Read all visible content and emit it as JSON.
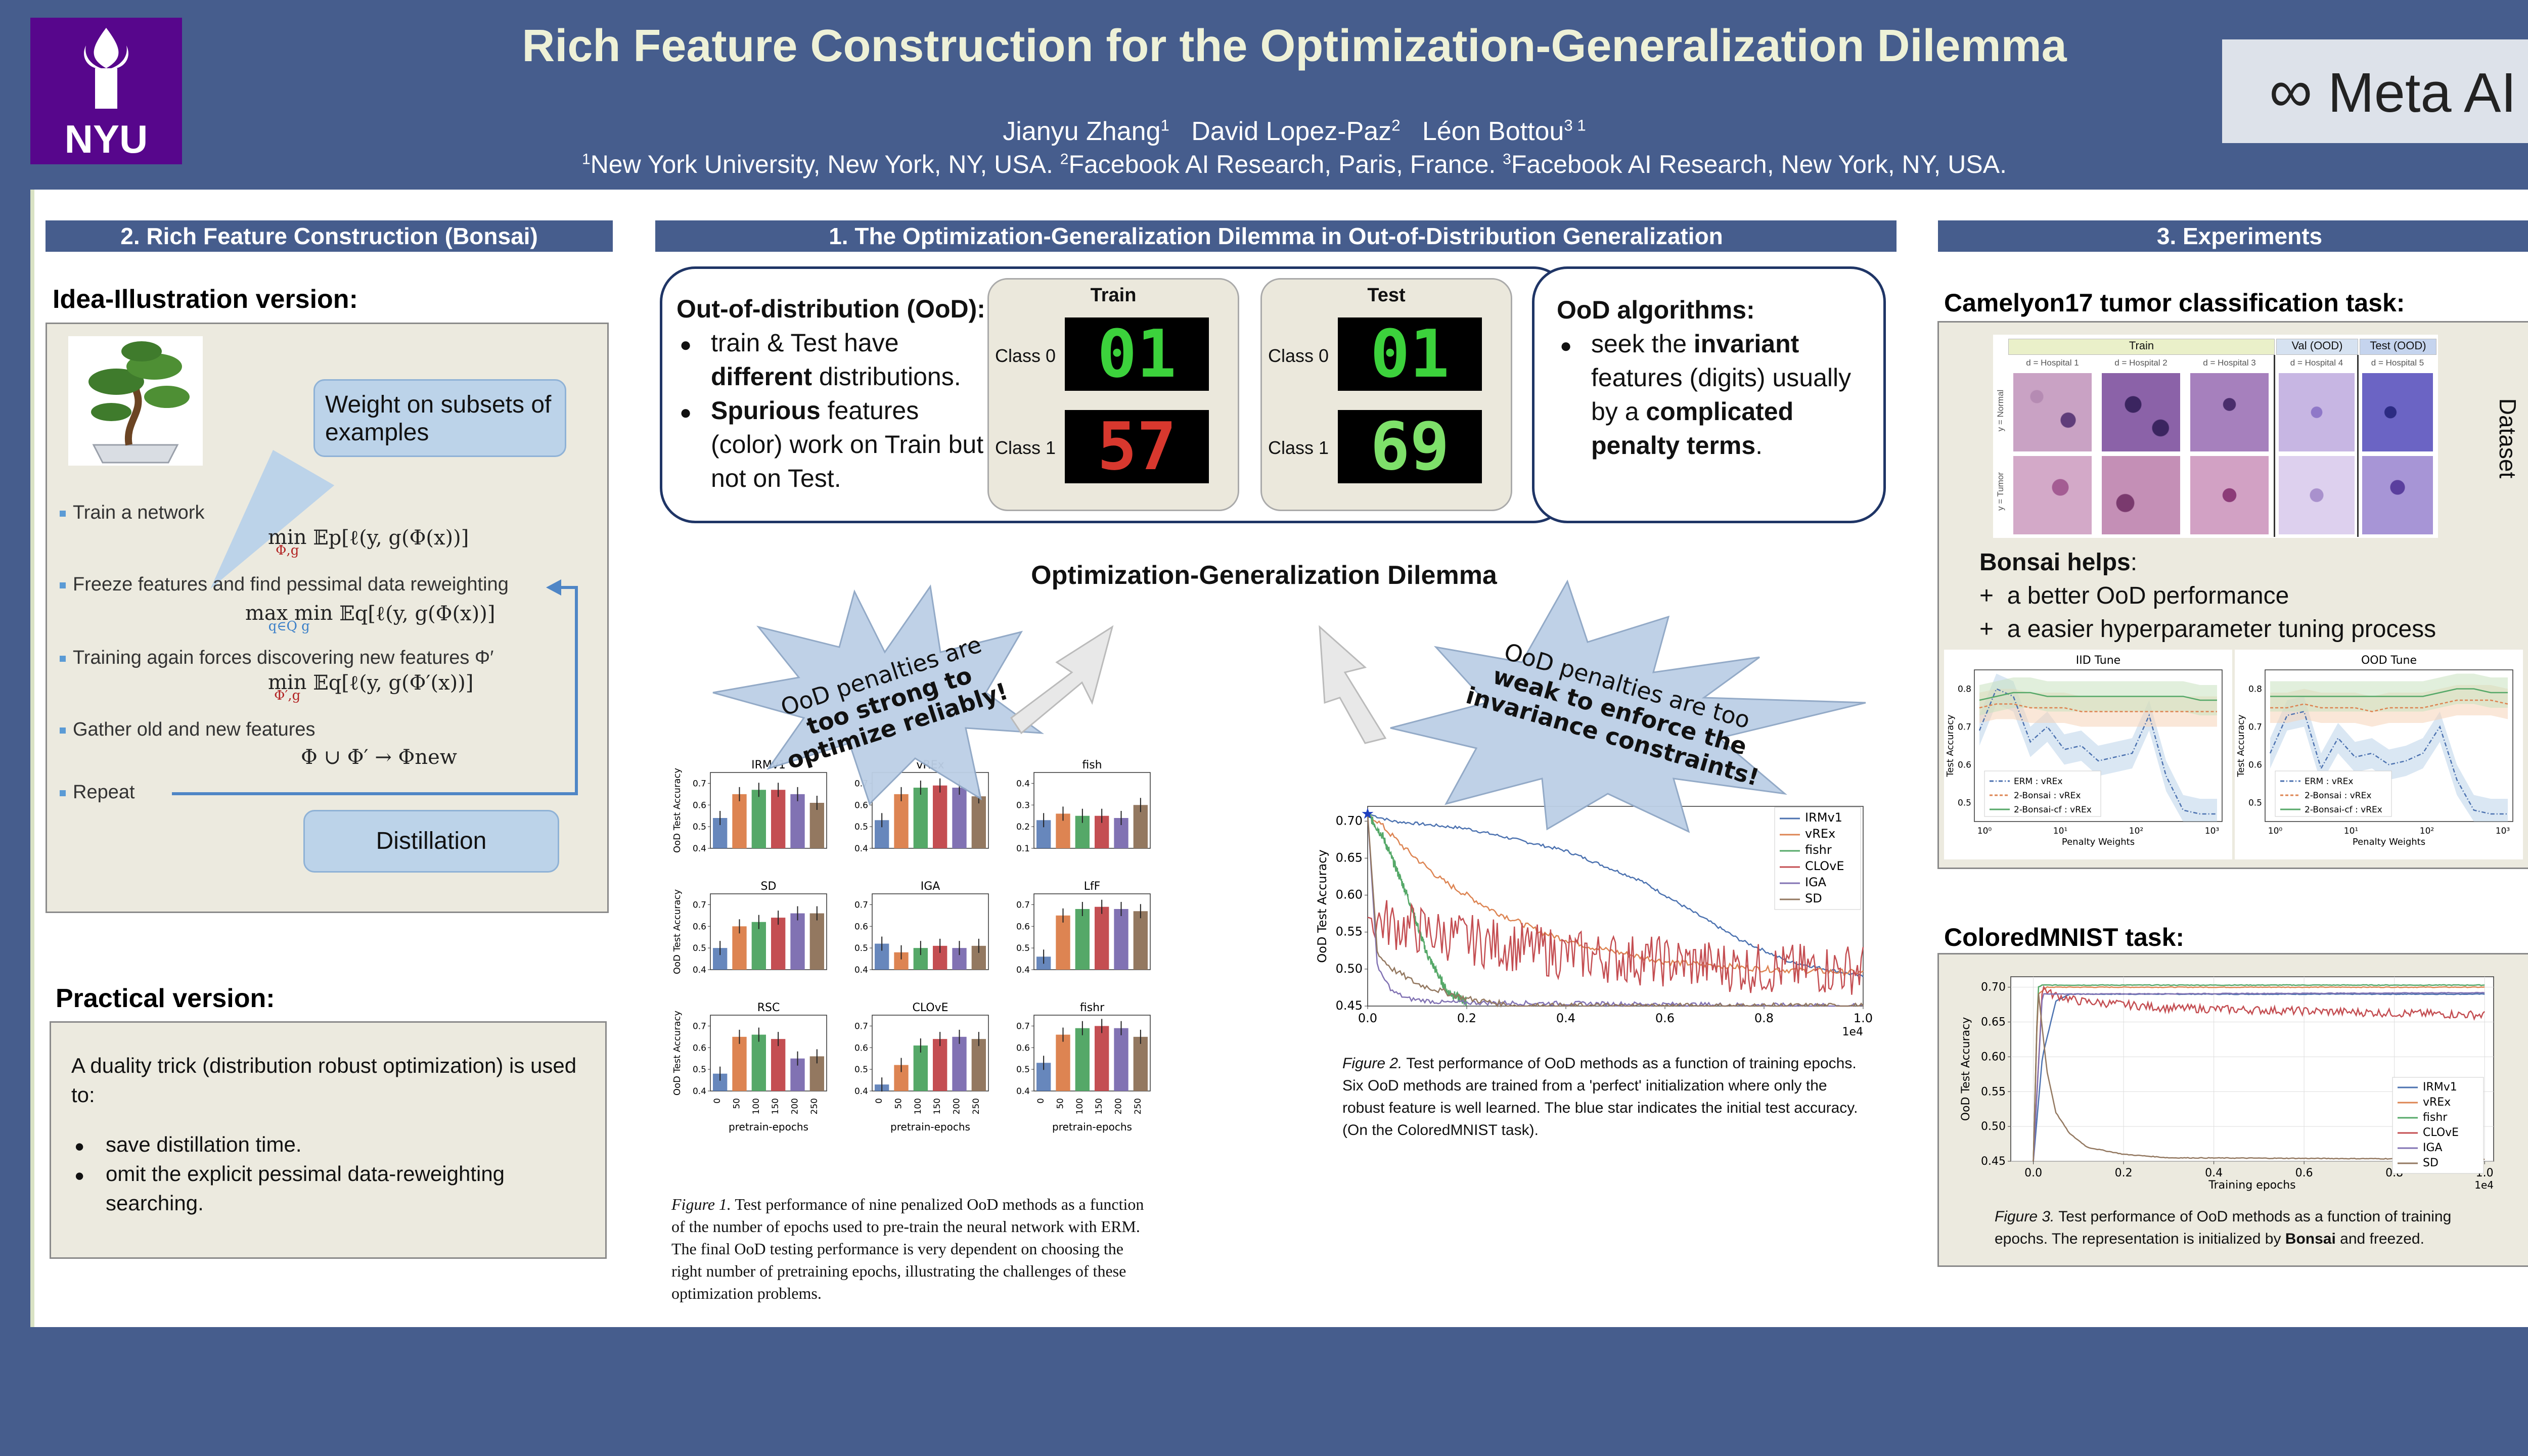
{
  "header": {
    "title": "Rich Feature Construction for the Optimization-Generalization Dilemma",
    "authors": [
      {
        "name": "Jianyu Zhang",
        "sup": "1"
      },
      {
        "name": "David Lopez-Paz",
        "sup": "2"
      },
      {
        "name": "Léon Bottou",
        "sup": "3 1"
      }
    ],
    "affiliations": [
      {
        "sup": "1",
        "text": "New York University, New York, NY, USA. "
      },
      {
        "sup": "2",
        "text": "Facebook AI Research, Paris, France. "
      },
      {
        "sup": "3",
        "text": "Facebook AI Research, New York, NY, USA."
      }
    ],
    "logo_left": "NYU",
    "logo_right": "Meta AI",
    "colors": {
      "band": "#465d8d",
      "title": "#eef1d7",
      "nyu": "#57068c"
    }
  },
  "left": {
    "section_title": "2. Rich Feature Construction (Bonsai)",
    "idea_heading": "Idea-Illustration version:",
    "callout_weight": "Weight on subsets of examples",
    "callout_distill": "Distillation",
    "steps": [
      {
        "label": "Train a network",
        "op": "min",
        "sub": "Φ,g",
        "expr": "𝔼p[ℓ(y, g(Φ(x))]"
      },
      {
        "label": "Freeze features and find pessimal data reweighting",
        "op": "max min",
        "sub": "q∈Q   g",
        "expr": "𝔼q[ℓ(y, g(Φ(x))]"
      },
      {
        "label": "Training again forces discovering new features Φ′",
        "op": "min",
        "sub": "Φ′,g",
        "expr": "𝔼q[ℓ(y, g(Φ′(x))]"
      },
      {
        "label": "Gather old and new features",
        "op": "",
        "sub": "",
        "expr": "Φ ∪ Φ′ → Φnew"
      },
      {
        "label": "Repeat",
        "op": "",
        "sub": "",
        "expr": ""
      }
    ],
    "practical_heading": "Practical version:",
    "practical_intro": "A duality trick (distribution robust optimization) is used to:",
    "practical_bullets": [
      "save distillation time.",
      "omit the explicit pessimal data-reweighting searching."
    ]
  },
  "middle": {
    "section_title": "1.   The Optimization-Generalization Dilemma in Out-of-Distribution Generalization",
    "ood_heading": "Out-of-distribution (OoD):",
    "ood_bullets": [
      [
        {
          "t": "train & Test have ",
          "b": false
        },
        {
          "t": "different",
          "b": true
        },
        {
          "t": " distributions.",
          "b": false
        }
      ],
      [
        {
          "t": "Spurious",
          "b": true
        },
        {
          "t": " features (color) work on Train but not on Test.",
          "b": false
        }
      ]
    ],
    "mnist_train": {
      "title": "Train",
      "class0": "Class 0",
      "class1": "Class 1",
      "digits0": "01",
      "digits1": "57"
    },
    "mnist_test": {
      "title": "Test",
      "class0": "Class 0",
      "class1": "Class 1",
      "digits0": "01",
      "digits1": "69"
    },
    "algo_heading": "OoD algorithms:",
    "algo_bullet": [
      {
        "t": "seek the ",
        "b": false
      },
      {
        "t": "invariant",
        "b": true
      },
      {
        "t": " features (digits) usually by a ",
        "b": false
      },
      {
        "t": "complicated penalty terms",
        "b": true
      },
      {
        "t": ".",
        "b": false
      }
    ],
    "dilemma_title": "Optimization-Generalization Dilemma",
    "burst_left": [
      "OoD penalties are",
      "too strong to",
      "optimize reliably!"
    ],
    "burst_right": [
      "OoD penalties are too",
      "weak to enforce the",
      "invariance constraints!"
    ],
    "fig1_caption_label": "Figure 1.",
    "fig1_caption": "Test performance of nine penalized OoD methods as a function of the number of epochs used to pre-train the neural network with ERM. The final OoD testing performance is very dependent on choosing the right number of pretraining epochs, illustrating the challenges of these optimization problems.",
    "fig2_caption_label": "Figure 2.",
    "fig2_caption": "Test performance of OoD methods as a function of training epochs. Six OoD methods are trained from a 'perfect' initialization where only the robust feature is well learned. The blue star indicates the initial test accuracy. (On the ColoredMNIST task)."
  },
  "right": {
    "section_title": "3. Experiments",
    "camelyon_heading": "Camelyon17 tumor classification task:",
    "dataset_label": "Dataset",
    "camelyon_groups": [
      "Train",
      "Val (OOD)",
      "Test (OOD)"
    ],
    "hospitals": [
      "d = Hospital 1",
      "d = Hospital 2",
      "d = Hospital 3",
      "d = Hospital 4",
      "d = Hospital 5"
    ],
    "row_labels": [
      "y = Normal",
      "y = Tumor"
    ],
    "bonsai_heading": "Bonsai helps",
    "bonsai_items": [
      "a better OoD performance",
      "a easier hyperparameter tuning process"
    ],
    "colored_heading": "ColoredMNIST task:",
    "fig3_caption_label": "Figure 3.",
    "fig3_caption_a": "Test performance of OoD methods as a function of training epochs. The representation is initialized by ",
    "fig3_caption_b": "Bonsai",
    "fig3_caption_c": " and freezed."
  },
  "chart_data": [
    {
      "id": "fig1",
      "type": "bar",
      "title": "Figure 1 grid",
      "categories": [
        "0",
        "50",
        "100",
        "150",
        "200",
        "250"
      ],
      "xlabel": "pretrain-epochs",
      "ylabel": "OoD Test Accuracy",
      "colors": [
        "#4c72b0",
        "#dd8452",
        "#55a868",
        "#c44e52",
        "#8172b3",
        "#937860"
      ],
      "subplots": [
        {
          "name": "IRMv1",
          "ylim": [
            0.4,
            0.75
          ],
          "ticks": [
            "0.4",
            "0.5",
            "0.6",
            "0.7"
          ],
          "values": [
            0.54,
            0.65,
            0.67,
            0.67,
            0.65,
            0.61
          ]
        },
        {
          "name": "vREx",
          "ylim": [
            0.4,
            0.75
          ],
          "ticks": [
            "0.4",
            "0.5",
            "0.6",
            "0.7"
          ],
          "values": [
            0.53,
            0.65,
            0.68,
            0.69,
            0.68,
            0.64
          ]
        },
        {
          "name": "fish",
          "ylim": [
            0.1,
            0.45
          ],
          "ticks": [
            "0.1",
            "0.2",
            "0.3",
            "0.4"
          ],
          "values": [
            0.23,
            0.26,
            0.25,
            0.25,
            0.24,
            0.3
          ]
        },
        {
          "name": "SD",
          "ylim": [
            0.4,
            0.75
          ],
          "ticks": [
            "0.4",
            "0.5",
            "0.6",
            "0.7"
          ],
          "values": [
            0.5,
            0.6,
            0.62,
            0.64,
            0.66,
            0.66
          ]
        },
        {
          "name": "IGA",
          "ylim": [
            0.4,
            0.75
          ],
          "ticks": [
            "0.4",
            "0.5",
            "0.6",
            "0.7"
          ],
          "values": [
            0.52,
            0.48,
            0.5,
            0.51,
            0.5,
            0.51
          ]
        },
        {
          "name": "LfF",
          "ylim": [
            0.4,
            0.75
          ],
          "ticks": [
            "0.4",
            "0.5",
            "0.6",
            "0.7"
          ],
          "values": [
            0.46,
            0.65,
            0.68,
            0.69,
            0.68,
            0.67
          ]
        },
        {
          "name": "RSC",
          "ylim": [
            0.4,
            0.75
          ],
          "ticks": [
            "0.4",
            "0.5",
            "0.6",
            "0.7"
          ],
          "values": [
            0.48,
            0.65,
            0.66,
            0.64,
            0.55,
            0.56
          ]
        },
        {
          "name": "CLOvE",
          "ylim": [
            0.4,
            0.75
          ],
          "ticks": [
            "0.4",
            "0.5",
            "0.6",
            "0.7"
          ],
          "values": [
            0.43,
            0.52,
            0.61,
            0.64,
            0.65,
            0.64
          ]
        },
        {
          "name": "fishr",
          "ylim": [
            0.4,
            0.75
          ],
          "ticks": [
            "0.4",
            "0.5",
            "0.6",
            "0.7"
          ],
          "values": [
            0.53,
            0.66,
            0.69,
            0.7,
            0.69,
            0.65
          ]
        }
      ]
    },
    {
      "id": "fig2",
      "type": "line",
      "ylabel": "OoD Test Accuracy",
      "xlim": [
        0,
        1.0
      ],
      "ylim": [
        0.45,
        0.72
      ],
      "x_ticks": [
        "0.0",
        "0.2",
        "0.4",
        "0.6",
        "0.8",
        "1.0"
      ],
      "y_ticks": [
        "0.45",
        "0.50",
        "0.55",
        "0.60",
        "0.65",
        "0.70"
      ],
      "x_scale_note": "1e4",
      "star": {
        "x": 0.0,
        "y": 0.71
      },
      "series": [
        {
          "name": "IRMv1",
          "color": "#4c72b0",
          "x": [
            0,
            0.05,
            0.2,
            0.4,
            0.55,
            0.65,
            0.75,
            0.85,
            1.0
          ],
          "y": [
            0.71,
            0.7,
            0.69,
            0.66,
            0.62,
            0.58,
            0.54,
            0.51,
            0.49
          ],
          "noise": 0.002
        },
        {
          "name": "vREx",
          "color": "#dd8452",
          "x": [
            0,
            0.02,
            0.08,
            0.15,
            0.25,
            0.35,
            0.45,
            0.6,
            0.8,
            1.0
          ],
          "y": [
            0.71,
            0.7,
            0.66,
            0.62,
            0.58,
            0.55,
            0.53,
            0.51,
            0.5,
            0.495
          ],
          "noise": 0.004
        },
        {
          "name": "fishr",
          "color": "#55a868",
          "x": [
            0,
            0.03,
            0.08,
            0.12,
            0.16,
            0.2
          ],
          "y": [
            0.71,
            0.68,
            0.6,
            0.52,
            0.47,
            0.455
          ],
          "noise": 0.006
        },
        {
          "name": "CLOvE",
          "color": "#c44e52",
          "x": [
            0,
            0.05,
            0.2,
            0.4,
            0.6,
            0.8,
            1.0
          ],
          "y": [
            0.57,
            0.56,
            0.54,
            0.52,
            0.51,
            0.5,
            0.5
          ],
          "noise": 0.035
        },
        {
          "name": "IGA",
          "color": "#8172b3",
          "x": [
            0,
            0.02,
            0.05,
            0.08,
            0.15,
            1.0
          ],
          "y": [
            0.71,
            0.5,
            0.47,
            0.46,
            0.455,
            0.45
          ],
          "noise": 0.003
        },
        {
          "name": "SD",
          "color": "#937860",
          "x": [
            0,
            0.02,
            0.05,
            0.1,
            0.15,
            0.2,
            0.25,
            0.3,
            1.0
          ],
          "y": [
            0.71,
            0.52,
            0.5,
            0.48,
            0.47,
            0.46,
            0.455,
            0.45,
            0.45
          ],
          "noise": 0.004
        }
      ]
    },
    {
      "id": "iid_tune",
      "type": "line",
      "title": "IID Tune",
      "xlabel": "Penalty Weights",
      "ylabel": "Test Accuracy",
      "x_ticks": [
        "10⁰",
        "10¹",
        "10²",
        "10³"
      ],
      "y_ticks": [
        "0.5",
        "0.6",
        "0.7",
        "0.8"
      ],
      "ylim": [
        0.45,
        0.85
      ],
      "series": [
        {
          "name": "ERM : vREx",
          "color": "#4c72b0",
          "dash": "8 4 2 4",
          "values": [
            0.69,
            0.8,
            0.78,
            0.66,
            0.7,
            0.64,
            0.65,
            0.61,
            0.62,
            0.63,
            0.73,
            0.57,
            0.48,
            0.47,
            0.47
          ]
        },
        {
          "name": "2-Bonsai : vREx",
          "color": "#dd8452",
          "dash": "6 4",
          "values": [
            0.75,
            0.76,
            0.76,
            0.75,
            0.75,
            0.75,
            0.74,
            0.74,
            0.74,
            0.74,
            0.74,
            0.74,
            0.74,
            0.74,
            0.74
          ]
        },
        {
          "name": "2-Bonsai-cf : vREx",
          "color": "#55a868",
          "dash": "",
          "values": [
            0.77,
            0.78,
            0.79,
            0.79,
            0.78,
            0.78,
            0.78,
            0.78,
            0.78,
            0.78,
            0.78,
            0.78,
            0.78,
            0.77,
            0.77
          ]
        }
      ]
    },
    {
      "id": "ood_tune",
      "type": "line",
      "title": "OOD Tune",
      "xlabel": "Penalty Weights",
      "ylabel": "Test Accuracy",
      "x_ticks": [
        "10⁰",
        "10¹",
        "10²",
        "10³"
      ],
      "y_ticks": [
        "0.5",
        "0.6",
        "0.7",
        "0.8"
      ],
      "ylim": [
        0.45,
        0.85
      ],
      "series": [
        {
          "name": "ERM : vREx",
          "color": "#4c72b0",
          "dash": "8 4 2 4",
          "values": [
            0.63,
            0.73,
            0.74,
            0.59,
            0.67,
            0.62,
            0.63,
            0.6,
            0.61,
            0.63,
            0.7,
            0.56,
            0.48,
            0.47,
            0.47
          ]
        },
        {
          "name": "2-Bonsai : vREx",
          "color": "#dd8452",
          "dash": "6 4",
          "values": [
            0.75,
            0.75,
            0.76,
            0.75,
            0.75,
            0.75,
            0.74,
            0.75,
            0.75,
            0.75,
            0.76,
            0.77,
            0.77,
            0.77,
            0.76
          ]
        },
        {
          "name": "2-Bonsai-cf : vREx",
          "color": "#55a868",
          "dash": "",
          "values": [
            0.78,
            0.78,
            0.78,
            0.78,
            0.78,
            0.78,
            0.78,
            0.78,
            0.78,
            0.78,
            0.79,
            0.8,
            0.8,
            0.79,
            0.79
          ]
        }
      ]
    },
    {
      "id": "fig3",
      "type": "line",
      "ylabel": "OoD Test Accuracy",
      "xlabel": "Training epochs",
      "x_ticks": [
        "0.0",
        "0.2",
        "0.4",
        "0.6",
        "0.8",
        "1.0"
      ],
      "y_ticks": [
        "0.45",
        "0.50",
        "0.55",
        "0.60",
        "0.65",
        "0.70"
      ],
      "x_scale_note": "1e4",
      "xlim": [
        -0.05,
        1.02
      ],
      "ylim": [
        0.45,
        0.715
      ],
      "series": [
        {
          "name": "IRMv1",
          "color": "#4c72b0",
          "x": [
            0,
            0.02,
            0.05,
            0.08,
            0.12,
            1.0
          ],
          "y": [
            0.45,
            0.6,
            0.68,
            0.69,
            0.69,
            0.69
          ],
          "noise": 0.0005
        },
        {
          "name": "vREx",
          "color": "#dd8452",
          "x": [
            0,
            0.01,
            0.03,
            1.0
          ],
          "y": [
            0.45,
            0.69,
            0.7,
            0.7
          ],
          "noise": 0.0005
        },
        {
          "name": "fishr",
          "color": "#55a868",
          "x": [
            0,
            0.01,
            0.02,
            1.0
          ],
          "y": [
            0.45,
            0.7,
            0.703,
            0.703
          ],
          "noise": 0.0005
        },
        {
          "name": "CLOvE",
          "color": "#c44e52",
          "x": [
            0,
            0.02,
            0.04,
            0.1,
            0.3,
            1.0
          ],
          "y": [
            0.45,
            0.7,
            0.69,
            0.68,
            0.67,
            0.66
          ],
          "noise": 0.006
        },
        {
          "name": "IGA",
          "color": "#8172b3",
          "x": [
            0,
            0.02,
            1.0
          ],
          "y": [
            0.45,
            0.69,
            0.692
          ],
          "noise": 0.0005
        },
        {
          "name": "SD",
          "color": "#937860",
          "x": [
            0,
            0.01,
            0.03,
            0.05,
            0.08,
            0.12,
            0.2,
            0.3,
            1.0
          ],
          "y": [
            0.45,
            0.7,
            0.58,
            0.52,
            0.49,
            0.47,
            0.46,
            0.455,
            0.453
          ],
          "noise": 0.0005
        }
      ]
    }
  ]
}
